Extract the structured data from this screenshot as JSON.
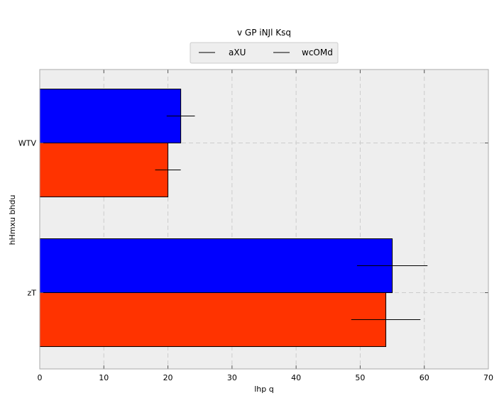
{
  "chart_data": {
    "type": "bar",
    "orientation": "horizontal",
    "legend_title": "v GP iNJl Ksq",
    "legend_placement": "top-center",
    "xlabel": "lhp q",
    "ylabel": "hHmxu bhdu",
    "xlim": [
      0,
      70
    ],
    "x_ticks": [
      0,
      10,
      20,
      30,
      40,
      50,
      60,
      70
    ],
    "grid": true,
    "categories": [
      "zT",
      "WTV"
    ],
    "series": [
      {
        "name": "aXU",
        "color": "#0000ff",
        "values": [
          55,
          22
        ],
        "errors": [
          5.5,
          2.2
        ]
      },
      {
        "name": "wcOMd",
        "color": "#ff3300",
        "values": [
          54,
          20
        ],
        "errors": [
          5.4,
          2.0
        ]
      }
    ],
    "colors": {
      "plot_background": "#eeeeee",
      "grid": "#cccccc"
    }
  }
}
